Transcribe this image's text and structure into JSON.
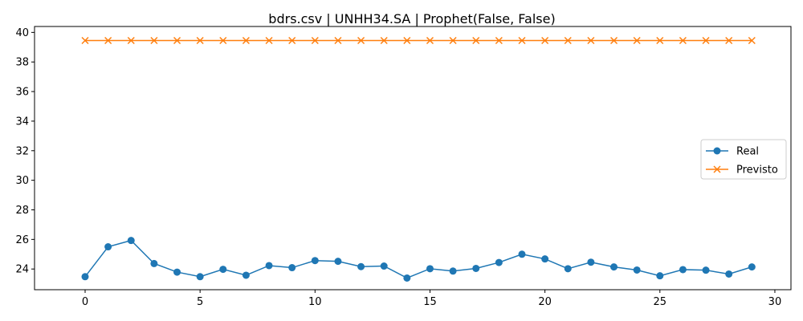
{
  "chart_data": {
    "type": "line",
    "title": "bdrs.csv | UNHH34.SA | Prophet(False, False)",
    "xlabel": "",
    "ylabel": "",
    "xlim": [
      -2.2,
      30.7
    ],
    "ylim": [
      22.6,
      40.4
    ],
    "xticks": [
      0,
      5,
      10,
      15,
      20,
      25,
      30
    ],
    "yticks": [
      24,
      26,
      28,
      30,
      32,
      34,
      36,
      38,
      40
    ],
    "grid": false,
    "legend_position": "center-right",
    "x": [
      0,
      1,
      2,
      3,
      4,
      5,
      6,
      7,
      8,
      9,
      10,
      11,
      12,
      13,
      14,
      15,
      16,
      17,
      18,
      19,
      20,
      21,
      22,
      23,
      24,
      25,
      26,
      27,
      28,
      29
    ],
    "series": [
      {
        "name": "Real",
        "color": "#1f77b4",
        "marker": "circle",
        "values": [
          23.48,
          25.5,
          25.93,
          24.37,
          23.79,
          23.48,
          23.98,
          23.58,
          24.23,
          24.09,
          24.57,
          24.52,
          24.16,
          24.2,
          23.39,
          24.02,
          23.86,
          24.04,
          24.44,
          25.0,
          24.68,
          24.02,
          24.46,
          24.14,
          23.93,
          23.54,
          23.96,
          23.92,
          23.66,
          24.14
        ]
      },
      {
        "name": "Previsto",
        "color": "#ff7f0e",
        "marker": "x",
        "values": [
          39.45,
          39.45,
          39.45,
          39.45,
          39.45,
          39.45,
          39.45,
          39.45,
          39.45,
          39.45,
          39.45,
          39.45,
          39.45,
          39.45,
          39.45,
          39.45,
          39.45,
          39.45,
          39.45,
          39.45,
          39.45,
          39.45,
          39.45,
          39.45,
          39.45,
          39.45,
          39.45,
          39.45,
          39.45,
          39.45
        ]
      }
    ]
  }
}
